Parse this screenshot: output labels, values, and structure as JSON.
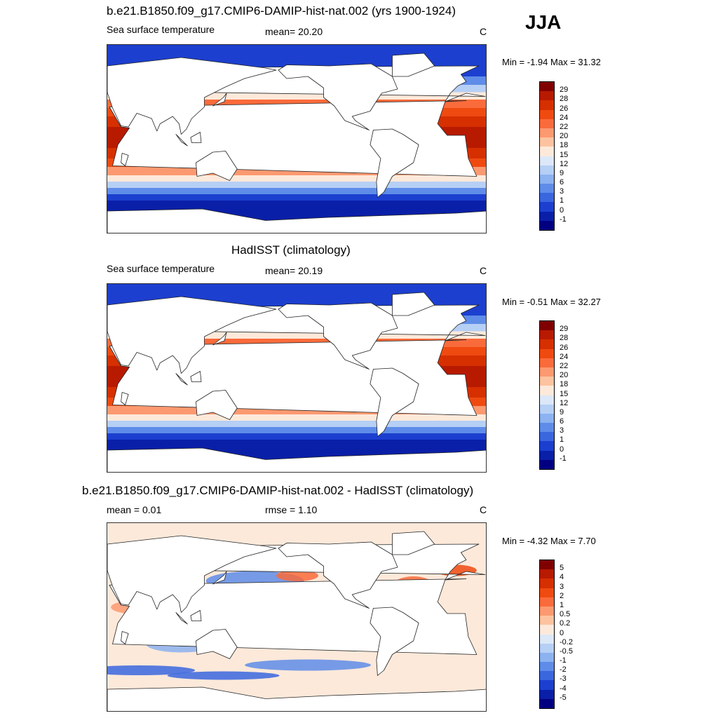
{
  "season": "JJA",
  "panels": [
    {
      "title": "b.e21.B1850.f09_g17.CMIP6-DAMIP-hist-nat.002 (yrs 1900-1924)",
      "left_label": "Sea surface temperature",
      "center_label": "mean=  20.20",
      "units": "C",
      "minmax": "Min =  -1.94 Max =  31.32",
      "colorbar": {
        "labels": [
          "29",
          "28",
          "26",
          "24",
          "22",
          "20",
          "18",
          "15",
          "12",
          "9",
          "6",
          "3",
          "1",
          "0",
          "-1"
        ],
        "colors": [
          "#800000",
          "#b81a00",
          "#d62f00",
          "#ef4a10",
          "#fa6b3b",
          "#fc9970",
          "#fdc3a0",
          "#fde9da",
          "#dce8f8",
          "#b6cff5",
          "#8cb2f0",
          "#5e8ce8",
          "#3a66de",
          "#1c3fcf",
          "#0a1fa8",
          "#000080"
        ]
      },
      "field": "abs"
    },
    {
      "title": "HadISST (climatology)",
      "left_label": "Sea surface temperature",
      "center_label": "mean=  20.19",
      "units": "C",
      "minmax": "Min =  -0.51 Max =  32.27",
      "colorbar": {
        "labels": [
          "29",
          "28",
          "26",
          "24",
          "22",
          "20",
          "18",
          "15",
          "12",
          "9",
          "6",
          "3",
          "1",
          "0",
          "-1"
        ],
        "colors": [
          "#800000",
          "#b81a00",
          "#d62f00",
          "#ef4a10",
          "#fa6b3b",
          "#fc9970",
          "#fdc3a0",
          "#fde9da",
          "#dce8f8",
          "#b6cff5",
          "#8cb2f0",
          "#5e8ce8",
          "#3a66de",
          "#1c3fcf",
          "#0a1fa8",
          "#000080"
        ]
      },
      "field": "abs"
    },
    {
      "title": "b.e21.B1850.f09_g17.CMIP6-DAMIP-hist-nat.002 - HadISST (climatology)",
      "left_label": "mean =   0.01",
      "center_label": "rmse =   1.10",
      "units": "C",
      "minmax": "Min =  -4.32 Max =   7.70",
      "colorbar": {
        "labels": [
          "5",
          "4",
          "3",
          "2",
          "1",
          "0.5",
          "0.2",
          "0",
          "-0.2",
          "-0.5",
          "-1",
          "-2",
          "-3",
          "-4",
          "-5"
        ],
        "colors": [
          "#800000",
          "#b81a00",
          "#d62f00",
          "#ef4a10",
          "#fa6b3b",
          "#fc9970",
          "#fdc3a0",
          "#fde9da",
          "#dce8f8",
          "#b6cff5",
          "#8cb2f0",
          "#5e8ce8",
          "#3a66de",
          "#1c3fcf",
          "#0a1fa8",
          "#000080"
        ]
      },
      "field": "diff"
    }
  ]
}
